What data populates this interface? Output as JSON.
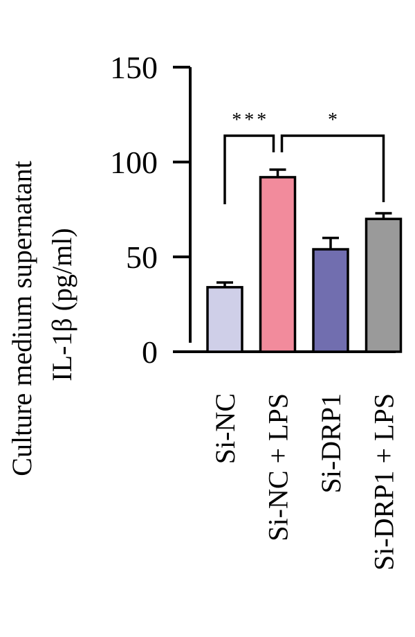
{
  "chart_data": {
    "type": "bar",
    "ylabel_line1": "Culture medium supernatant",
    "ylabel_line2": "IL-1β (pg/ml)",
    "categories": [
      "Si-NC",
      "Si-NC + LPS",
      "Si-DRP1",
      "Si-DRP1 + LPS"
    ],
    "values": [
      34,
      92,
      54,
      70
    ],
    "errors": [
      2.5,
      4,
      6,
      3
    ],
    "colors": [
      "#cfcfe8",
      "#f28b9c",
      "#716eaf",
      "#9a9a9a"
    ],
    "ylim": [
      0,
      150
    ],
    "yticks": [
      0,
      50,
      100,
      150
    ],
    "significance": [
      {
        "from": 0,
        "to": 1,
        "label": "***"
      },
      {
        "from": 1,
        "to": 3,
        "label": "*"
      }
    ]
  }
}
